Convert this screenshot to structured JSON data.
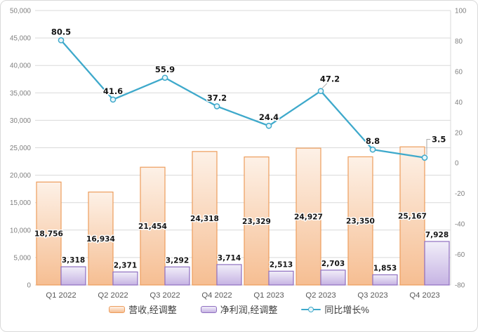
{
  "chart_data": {
    "type": "combo",
    "title": "",
    "categories": [
      "Q1 2022",
      "Q2 2022",
      "Q3 2022",
      "Q4 2022",
      "Q1 2023",
      "Q2 2023",
      "Q3 2023",
      "Q4 2023"
    ],
    "series": [
      {
        "name": "营收,经调整",
        "type": "bar",
        "axis": "left",
        "values": [
          18756,
          16934,
          21454,
          24318,
          23329,
          24927,
          23350,
          25167
        ],
        "labels": [
          "18,756",
          "16,934",
          "21,454",
          "24,318",
          "23,329",
          "24,927",
          "23,350",
          "25,167"
        ],
        "border_color": "#ED9D5C",
        "fill_top": "#FDF1E7",
        "fill_bottom": "#F6BE92"
      },
      {
        "name": "净利润,经调整",
        "type": "bar",
        "axis": "left",
        "values": [
          3318,
          2371,
          3292,
          3714,
          2513,
          2703,
          1853,
          7928
        ],
        "labels": [
          "3,318",
          "2,371",
          "3,292",
          "3,714",
          "2,513",
          "2,703",
          "1,853",
          "7,928"
        ],
        "border_color": "#8F6FC0",
        "fill_top": "#F1EEF9",
        "fill_bottom": "#C6B3E3"
      },
      {
        "name": "同比增长%",
        "type": "line",
        "axis": "right",
        "values": [
          80.5,
          41.6,
          55.9,
          37.2,
          24.4,
          47.2,
          8.8,
          3.5
        ],
        "labels": [
          "80.5",
          "41.6",
          "55.9",
          "37.2",
          "24.4",
          "47.2",
          "8.8",
          "3.5"
        ],
        "line_color": "#3EA9CB",
        "marker_fill": "#EAF6FA"
      }
    ],
    "left_axis": {
      "min": 0,
      "max": 50000,
      "step": 5000,
      "tick_labels": [
        "0",
        "5,000",
        "10,000",
        "15,000",
        "20,000",
        "25,000",
        "30,000",
        "35,000",
        "40,000",
        "45,000",
        "50,000"
      ]
    },
    "right_axis": {
      "min": -80,
      "max": 100,
      "step": 20,
      "tick_labels": [
        "-80",
        "-60",
        "-40",
        "-20",
        "0",
        "20",
        "40",
        "60",
        "80",
        "100"
      ]
    },
    "grid": true,
    "legend_position": "bottom",
    "colors": {
      "grid": "#D9D9D9",
      "frame_border": "#D9D9D9",
      "axis_text": "#7F7F7F",
      "category_text": "#595959",
      "label_text": "#151515",
      "leader": "#A6A6A6",
      "background": "#FFFFFF"
    }
  }
}
